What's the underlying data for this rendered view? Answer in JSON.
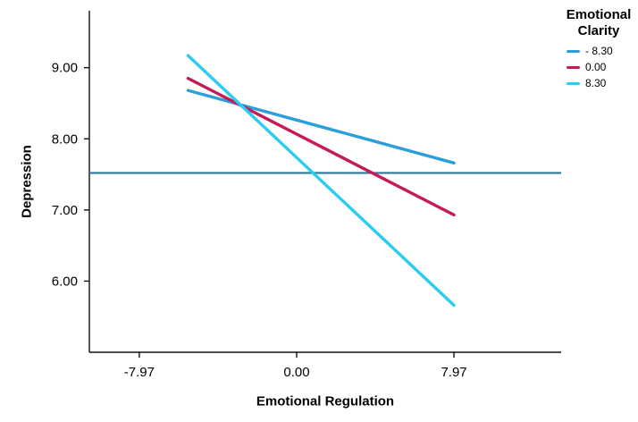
{
  "chart_data": {
    "type": "line",
    "title": "",
    "xlabel": "Emotional Regulation",
    "ylabel": "Depression",
    "xlim": [
      -10.5,
      13.4
    ],
    "ylim": [
      5.0,
      9.8
    ],
    "grid": false,
    "xticks": [
      {
        "value": -7.97,
        "label": "-7.97"
      },
      {
        "value": 0,
        "label": "0.00"
      },
      {
        "value": 7.97,
        "label": "7.97"
      }
    ],
    "yticks": [
      {
        "value": 6,
        "label": "6.00"
      },
      {
        "value": 7,
        "label": "7.00"
      },
      {
        "value": 8,
        "label": "8.00"
      },
      {
        "value": 9,
        "label": "9.00"
      }
    ],
    "series": [
      {
        "name": "- 8.30",
        "color": "#2b9fd9",
        "x": [
          -5.5,
          7.97
        ],
        "y": [
          8.68,
          7.66
        ]
      },
      {
        "name": "0.00",
        "color": "#c41a58",
        "x": [
          -5.5,
          7.97
        ],
        "y": [
          8.85,
          6.93
        ]
      },
      {
        "name": "8.30",
        "color": "#29cdf2",
        "x": [
          -5.5,
          7.97
        ],
        "y": [
          9.17,
          5.66
        ]
      }
    ],
    "reference_line": {
      "y": 7.52,
      "color": "#28789b"
    },
    "legend": {
      "position": "top-right",
      "title": "Emotional Clarity"
    }
  }
}
